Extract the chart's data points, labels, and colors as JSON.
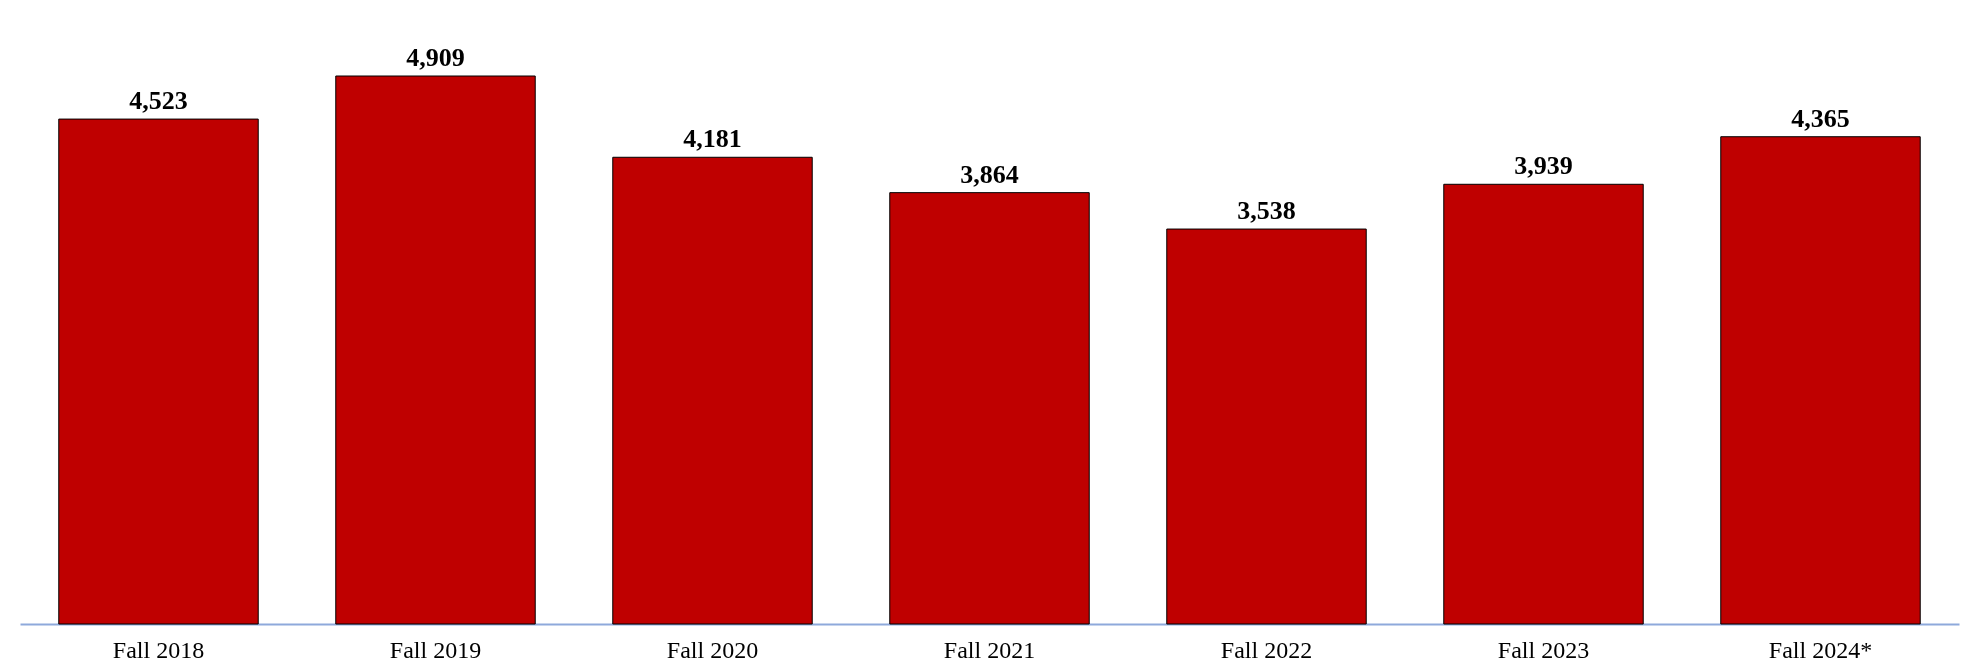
{
  "chart_data": {
    "type": "bar",
    "categories": [
      "Fall 2018",
      "Fall 2019",
      "Fall 2020",
      "Fall 2021",
      "Fall 2022",
      "Fall 2023",
      "Fall 2024*"
    ],
    "values": [
      4523,
      4909,
      4181,
      3864,
      3538,
      3939,
      4365
    ],
    "value_labels": [
      "4,523",
      "4,909",
      "4,181",
      "3,864",
      "3,538",
      "3,939",
      "4,365"
    ],
    "color": "#bf0000"
  }
}
